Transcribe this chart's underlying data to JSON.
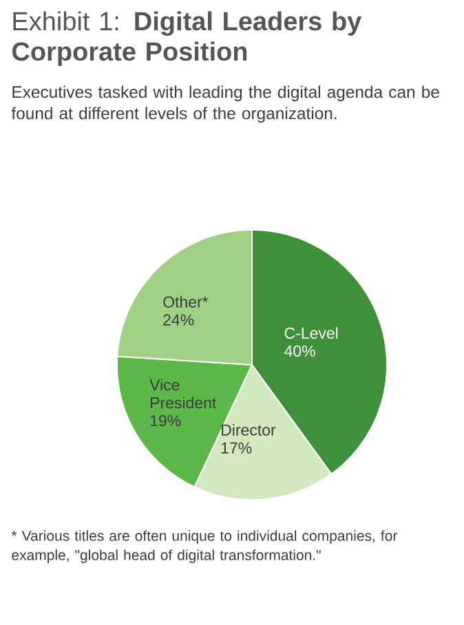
{
  "chart_data": {
    "type": "pie",
    "title": "Exhibit 1: **Digital Leaders by Corporate Position**",
    "subtitle": "Executives tasked with leading the digital agenda can be found at different levels of the organization.",
    "categories": [
      "C-Level",
      "Director",
      "Vice President",
      "Other*"
    ],
    "values": [
      40,
      17,
      19,
      24
    ],
    "value_labels": [
      "40%",
      "17%",
      "19%",
      "24%"
    ],
    "colors": [
      "#3f8f3b",
      "#d3e8c0",
      "#5db84a",
      "#9fd084"
    ],
    "annotations": [
      "* Various titles are often unique to individual companies, for example, \"global head of digital transformation.\""
    ]
  }
}
